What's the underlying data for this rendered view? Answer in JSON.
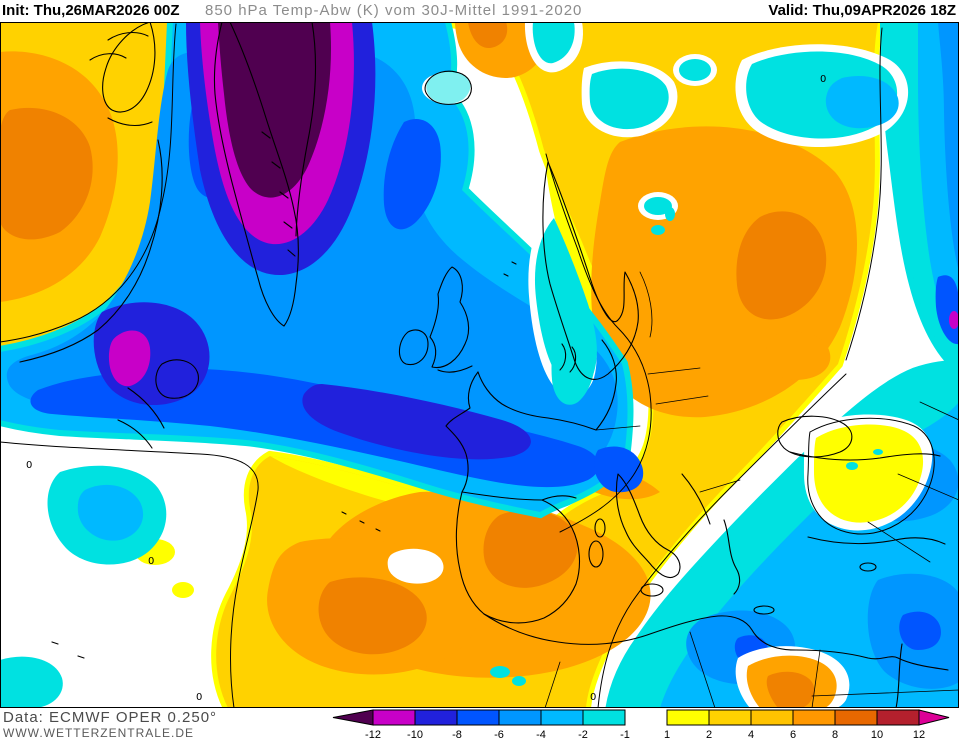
{
  "header": {
    "init_label": "Init:",
    "init_value": "Thu,26MAR2026 00Z",
    "title": "850 hPa Temp-Abw (K) vom 30J-Mittel 1991-2020",
    "valid_label": "Valid:",
    "valid_value": "Thu,09APR2026 18Z"
  },
  "footer": {
    "data_source": "Data: ECMWF OPER 0.250°",
    "website": "WWW.WETTERZENTRALE.DE"
  },
  "map": {
    "contour_label": "0"
  },
  "scale": {
    "ticks": [
      "-12",
      "-10",
      "-8",
      "-6",
      "-4",
      "-2",
      "-1",
      "1",
      "2",
      "4",
      "6",
      "8",
      "10",
      "12"
    ],
    "cells": [
      "#C800C8",
      "#2121DC",
      "#0055FF",
      "#0096FF",
      "#00B9FF",
      "#00E1E1",
      "#FFFFFF",
      "#FFFF00",
      "#FFD200",
      "#FFC300",
      "#FF9800",
      "#E86800",
      "#B4202D"
    ],
    "left_arrow_color": "#500050",
    "right_arrow_color": "#DC0096",
    "palette": {
      "pm": "#500050",
      "mg": "#C800C8",
      "b10": "#2121DC",
      "b8": "#0055FF",
      "b6": "#0096FF",
      "b4": "#00B9FF",
      "cy": "#00E1E1",
      "wz": "#FFFFFF",
      "y1": "#FFFF00",
      "g2": "#FFD200",
      "o4": "#FFA300",
      "d6": "#F08200"
    }
  }
}
